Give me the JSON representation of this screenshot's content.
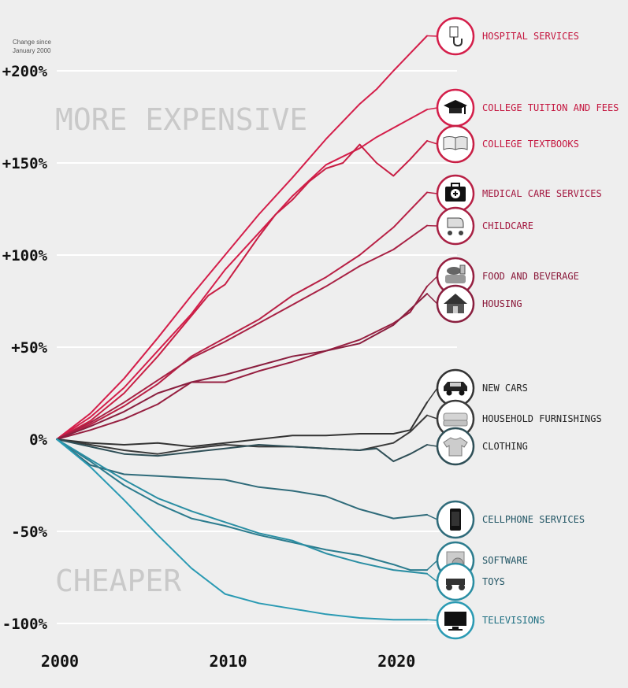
{
  "chart_data": {
    "type": "line",
    "title": "",
    "note": [
      "Change since",
      "January 2000"
    ],
    "xlabel": "",
    "ylabel": "Change since January 2000",
    "xlim": [
      2000,
      2022
    ],
    "ylim": [
      -100,
      215
    ],
    "x_ticks": [
      {
        "value": 2000,
        "label": "2000"
      },
      {
        "value": 2010,
        "label": "2010"
      },
      {
        "value": 2020,
        "label": "2020"
      }
    ],
    "y_ticks": [
      {
        "value": 200,
        "label": "+200%"
      },
      {
        "value": 150,
        "label": "+150%"
      },
      {
        "value": 100,
        "label": "+100%"
      },
      {
        "value": 50,
        "label": "+50%"
      },
      {
        "value": 0,
        "label": "0%"
      },
      {
        "value": -50,
        "label": "-50%"
      },
      {
        "value": -100,
        "label": "-100%"
      }
    ],
    "zones": {
      "upper": "MORE EXPENSIVE",
      "lower": "CHEAPER"
    },
    "series": [
      {
        "name": "HOSPITAL SERVICES",
        "icon": "hospital-icon",
        "color": "#d41e4a",
        "points": [
          [
            2000,
            0
          ],
          [
            2002,
            14
          ],
          [
            2004,
            33
          ],
          [
            2006,
            55
          ],
          [
            2008,
            78
          ],
          [
            2010,
            100
          ],
          [
            2012,
            122
          ],
          [
            2014,
            142
          ],
          [
            2016,
            163
          ],
          [
            2018,
            182
          ],
          [
            2019,
            190
          ],
          [
            2020,
            200
          ],
          [
            2022,
            219
          ]
        ]
      },
      {
        "name": "COLLEGE TUITION AND FEES",
        "icon": "graduation-cap-icon",
        "color": "#d41e4a",
        "points": [
          [
            2000,
            0
          ],
          [
            2002,
            12
          ],
          [
            2004,
            28
          ],
          [
            2006,
            48
          ],
          [
            2008,
            68
          ],
          [
            2010,
            92
          ],
          [
            2012,
            112
          ],
          [
            2014,
            132
          ],
          [
            2016,
            149
          ],
          [
            2018,
            158
          ],
          [
            2019,
            164
          ],
          [
            2020,
            169
          ],
          [
            2022,
            179
          ]
        ]
      },
      {
        "name": "COLLEGE TEXTBOOKS",
        "icon": "textbook-icon",
        "color": "#c81e44",
        "points": [
          [
            2000,
            0
          ],
          [
            2002,
            10
          ],
          [
            2004,
            25
          ],
          [
            2006,
            45
          ],
          [
            2008,
            67
          ],
          [
            2009,
            78
          ],
          [
            2010,
            84
          ],
          [
            2011,
            97
          ],
          [
            2012,
            110
          ],
          [
            2013,
            122
          ],
          [
            2014,
            130
          ],
          [
            2015,
            140
          ],
          [
            2016,
            147
          ],
          [
            2017,
            150
          ],
          [
            2018,
            160
          ],
          [
            2019,
            150
          ],
          [
            2020,
            143
          ],
          [
            2021,
            152
          ],
          [
            2022,
            162
          ]
        ]
      },
      {
        "name": "MEDICAL CARE SERVICES",
        "icon": "medical-kit-icon",
        "color": "#b82045",
        "points": [
          [
            2000,
            0
          ],
          [
            2002,
            8
          ],
          [
            2004,
            18
          ],
          [
            2006,
            30
          ],
          [
            2008,
            45
          ],
          [
            2010,
            55
          ],
          [
            2012,
            65
          ],
          [
            2014,
            78
          ],
          [
            2016,
            88
          ],
          [
            2018,
            100
          ],
          [
            2020,
            115
          ],
          [
            2022,
            134
          ]
        ]
      },
      {
        "name": "CHILDCARE",
        "icon": "stroller-icon",
        "color": "#a82144",
        "points": [
          [
            2000,
            0
          ],
          [
            2002,
            9
          ],
          [
            2004,
            20
          ],
          [
            2006,
            32
          ],
          [
            2008,
            44
          ],
          [
            2010,
            53
          ],
          [
            2012,
            63
          ],
          [
            2014,
            73
          ],
          [
            2016,
            83
          ],
          [
            2018,
            94
          ],
          [
            2020,
            103
          ],
          [
            2022,
            116
          ]
        ]
      },
      {
        "name": "FOOD AND BEVERAGE",
        "icon": "food-icon",
        "color": "#961f40",
        "points": [
          [
            2000,
            0
          ],
          [
            2002,
            5
          ],
          [
            2004,
            11
          ],
          [
            2006,
            19
          ],
          [
            2008,
            31
          ],
          [
            2010,
            31
          ],
          [
            2012,
            37
          ],
          [
            2014,
            42
          ],
          [
            2016,
            48
          ],
          [
            2018,
            54
          ],
          [
            2020,
            63
          ],
          [
            2021,
            69
          ],
          [
            2022,
            83
          ]
        ]
      },
      {
        "name": "HOUSING",
        "icon": "house-icon",
        "color": "#8a1f3f",
        "points": [
          [
            2000,
            0
          ],
          [
            2002,
            7
          ],
          [
            2004,
            15
          ],
          [
            2006,
            25
          ],
          [
            2008,
            31
          ],
          [
            2010,
            35
          ],
          [
            2012,
            40
          ],
          [
            2014,
            45
          ],
          [
            2016,
            48
          ],
          [
            2018,
            52
          ],
          [
            2020,
            62
          ],
          [
            2022,
            79
          ]
        ]
      },
      {
        "name": "NEW CARS",
        "icon": "car-icon",
        "color": "#333333",
        "points": [
          [
            2000,
            0
          ],
          [
            2002,
            -2
          ],
          [
            2004,
            -3
          ],
          [
            2006,
            -2
          ],
          [
            2008,
            -4
          ],
          [
            2010,
            -2
          ],
          [
            2012,
            0
          ],
          [
            2014,
            2
          ],
          [
            2016,
            2
          ],
          [
            2018,
            3
          ],
          [
            2020,
            3
          ],
          [
            2021,
            5
          ],
          [
            2022,
            20
          ]
        ]
      },
      {
        "name": "HOUSEHOLD FURNISHINGS",
        "icon": "sofa-icon",
        "color": "#3a3a3a",
        "points": [
          [
            2000,
            0
          ],
          [
            2002,
            -3
          ],
          [
            2004,
            -6
          ],
          [
            2006,
            -8
          ],
          [
            2008,
            -5
          ],
          [
            2010,
            -3
          ],
          [
            2012,
            -4
          ],
          [
            2014,
            -4
          ],
          [
            2016,
            -5
          ],
          [
            2018,
            -6
          ],
          [
            2020,
            -2
          ],
          [
            2021,
            4
          ],
          [
            2022,
            13
          ]
        ]
      },
      {
        "name": "CLOTHING",
        "icon": "shirt-icon",
        "color": "#2f4f57",
        "points": [
          [
            2000,
            0
          ],
          [
            2002,
            -4
          ],
          [
            2004,
            -8
          ],
          [
            2006,
            -9
          ],
          [
            2008,
            -7
          ],
          [
            2010,
            -5
          ],
          [
            2012,
            -3
          ],
          [
            2014,
            -4
          ],
          [
            2016,
            -5
          ],
          [
            2018,
            -6
          ],
          [
            2019,
            -5
          ],
          [
            2020,
            -12
          ],
          [
            2021,
            -8
          ],
          [
            2022,
            -3
          ]
        ]
      },
      {
        "name": "CELLPHONE SERVICES",
        "icon": "cellphone-icon",
        "color": "#2f6b7a",
        "points": [
          [
            2000,
            0
          ],
          [
            2002,
            -14
          ],
          [
            2004,
            -19
          ],
          [
            2006,
            -20
          ],
          [
            2008,
            -21
          ],
          [
            2010,
            -22
          ],
          [
            2012,
            -26
          ],
          [
            2014,
            -28
          ],
          [
            2016,
            -31
          ],
          [
            2018,
            -38
          ],
          [
            2020,
            -43
          ],
          [
            2022,
            -41
          ]
        ]
      },
      {
        "name": "SOFTWARE",
        "icon": "software-icon",
        "color": "#2c7c8e",
        "points": [
          [
            2000,
            0
          ],
          [
            2002,
            -12
          ],
          [
            2004,
            -25
          ],
          [
            2006,
            -35
          ],
          [
            2008,
            -43
          ],
          [
            2010,
            -47
          ],
          [
            2012,
            -52
          ],
          [
            2014,
            -56
          ],
          [
            2016,
            -60
          ],
          [
            2018,
            -63
          ],
          [
            2020,
            -68
          ],
          [
            2021,
            -71
          ],
          [
            2022,
            -71
          ]
        ]
      },
      {
        "name": "TOYS",
        "icon": "toys-icon",
        "color": "#2a8ea3",
        "points": [
          [
            2000,
            0
          ],
          [
            2002,
            -11
          ],
          [
            2004,
            -22
          ],
          [
            2006,
            -32
          ],
          [
            2008,
            -39
          ],
          [
            2010,
            -45
          ],
          [
            2012,
            -51
          ],
          [
            2014,
            -55
          ],
          [
            2016,
            -62
          ],
          [
            2018,
            -67
          ],
          [
            2020,
            -71
          ],
          [
            2022,
            -73
          ]
        ]
      },
      {
        "name": "TELEVISIONS",
        "icon": "television-icon",
        "color": "#2a9ab3",
        "points": [
          [
            2000,
            0
          ],
          [
            2002,
            -15
          ],
          [
            2004,
            -33
          ],
          [
            2006,
            -52
          ],
          [
            2008,
            -70
          ],
          [
            2010,
            -84
          ],
          [
            2012,
            -89
          ],
          [
            2014,
            -92
          ],
          [
            2016,
            -95
          ],
          [
            2018,
            -97
          ],
          [
            2020,
            -98
          ],
          [
            2022,
            -98
          ]
        ]
      }
    ],
    "end_labels": [
      {
        "series": "HOSPITAL SERVICES",
        "color": "#c4163f"
      },
      {
        "series": "COLLEGE TUITION AND FEES",
        "color": "#c4163f"
      },
      {
        "series": "COLLEGE TEXTBOOKS",
        "color": "#c4163f"
      },
      {
        "series": "MEDICAL CARE SERVICES",
        "color": "#a3173f"
      },
      {
        "series": "CHILDCARE",
        "color": "#a3173f"
      },
      {
        "series": "FOOD AND BEVERAGE",
        "color": "#8a1839"
      },
      {
        "series": "HOUSING",
        "color": "#8a1839"
      },
      {
        "series": "NEW CARS",
        "color": "#222222"
      },
      {
        "series": "HOUSEHOLD FURNISHINGS",
        "color": "#222222"
      },
      {
        "series": "CLOTHING",
        "color": "#222222"
      },
      {
        "series": "CELLPHONE SERVICES",
        "color": "#245766"
      },
      {
        "series": "SOFTWARE",
        "color": "#245766"
      },
      {
        "series": "TOYS",
        "color": "#245766"
      },
      {
        "series": "TELEVISIONS",
        "color": "#1e6f82"
      }
    ]
  }
}
